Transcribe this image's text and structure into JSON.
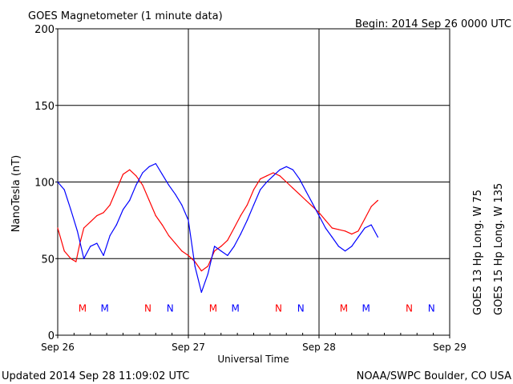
{
  "chart_data": {
    "type": "line",
    "title": "GOES Magnetometer (1 minute data)",
    "begin_label": "Begin:  2014 Sep 26 0000 UTC",
    "ylabel": "NanoTesla (nT)",
    "xlabel": "Universal Time",
    "ylim": [
      0,
      200
    ],
    "yticks": [
      "0",
      "50",
      "100",
      "150",
      "200"
    ],
    "xlim": [
      "2014-09-26",
      "2014-09-29"
    ],
    "xticks": [
      "Sep 26",
      "Sep 27",
      "Sep 28",
      "Sep 29"
    ],
    "grid": true,
    "series": [
      {
        "name": "GOES 13 Hp  Long. W 75",
        "color": "#ff0000",
        "x_days": [
          0.0,
          0.05,
          0.1,
          0.14,
          0.17,
          0.2,
          0.25,
          0.3,
          0.35,
          0.4,
          0.45,
          0.5,
          0.55,
          0.6,
          0.65,
          0.7,
          0.75,
          0.8,
          0.85,
          0.9,
          0.95,
          1.0,
          1.05,
          1.1,
          1.15,
          1.2,
          1.25,
          1.3,
          1.35,
          1.4,
          1.45,
          1.5,
          1.55,
          1.6,
          1.65,
          1.7,
          1.75,
          1.8,
          1.85,
          1.9,
          1.95,
          2.0,
          2.05,
          2.1,
          2.15,
          2.2,
          2.25,
          2.3,
          2.35,
          2.4,
          2.45
        ],
        "values": [
          70,
          55,
          50,
          48,
          60,
          70,
          74,
          78,
          80,
          85,
          95,
          105,
          108,
          104,
          98,
          88,
          78,
          72,
          65,
          60,
          55,
          52,
          48,
          42,
          45,
          55,
          58,
          62,
          70,
          78,
          85,
          95,
          102,
          104,
          106,
          104,
          100,
          96,
          92,
          88,
          84,
          80,
          75,
          70,
          69,
          68,
          66,
          68,
          76,
          84,
          88
        ]
      },
      {
        "name": "GOES 15 Hp  Long. W 135",
        "color": "#0000ff",
        "x_days": [
          0.0,
          0.05,
          0.1,
          0.15,
          0.2,
          0.25,
          0.3,
          0.35,
          0.4,
          0.45,
          0.5,
          0.55,
          0.6,
          0.65,
          0.7,
          0.75,
          0.8,
          0.85,
          0.9,
          0.95,
          1.0,
          1.05,
          1.1,
          1.15,
          1.2,
          1.25,
          1.3,
          1.35,
          1.4,
          1.45,
          1.5,
          1.55,
          1.6,
          1.65,
          1.7,
          1.75,
          1.8,
          1.85,
          1.9,
          1.95,
          2.0,
          2.05,
          2.1,
          2.15,
          2.2,
          2.25,
          2.3,
          2.35,
          2.4,
          2.45
        ],
        "values": [
          100,
          95,
          82,
          68,
          50,
          58,
          60,
          52,
          65,
          72,
          82,
          88,
          98,
          106,
          110,
          112,
          105,
          98,
          92,
          85,
          75,
          45,
          28,
          40,
          58,
          55,
          52,
          58,
          66,
          75,
          85,
          95,
          100,
          104,
          108,
          110,
          108,
          102,
          94,
          86,
          78,
          70,
          64,
          58,
          55,
          58,
          64,
          70,
          72,
          64
        ]
      }
    ],
    "markers": {
      "label_y": 18,
      "items": [
        {
          "label": "M",
          "x_days": 0.19,
          "color": "#ff0000"
        },
        {
          "label": "M",
          "x_days": 0.36,
          "color": "#0000ff"
        },
        {
          "label": "N",
          "x_days": 0.69,
          "color": "#ff0000"
        },
        {
          "label": "N",
          "x_days": 0.86,
          "color": "#0000ff"
        },
        {
          "label": "M",
          "x_days": 1.19,
          "color": "#ff0000"
        },
        {
          "label": "M",
          "x_days": 1.36,
          "color": "#0000ff"
        },
        {
          "label": "N",
          "x_days": 1.69,
          "color": "#ff0000"
        },
        {
          "label": "N",
          "x_days": 1.86,
          "color": "#0000ff"
        },
        {
          "label": "M",
          "x_days": 2.19,
          "color": "#ff0000"
        },
        {
          "label": "M",
          "x_days": 2.36,
          "color": "#0000ff"
        },
        {
          "label": "N",
          "x_days": 2.69,
          "color": "#ff0000"
        },
        {
          "label": "N",
          "x_days": 2.86,
          "color": "#0000ff"
        }
      ]
    }
  },
  "footer": {
    "updated": "Updated 2014 Sep 28 11:09:02 UTC",
    "source": "NOAA/SWPC Boulder, CO USA"
  }
}
